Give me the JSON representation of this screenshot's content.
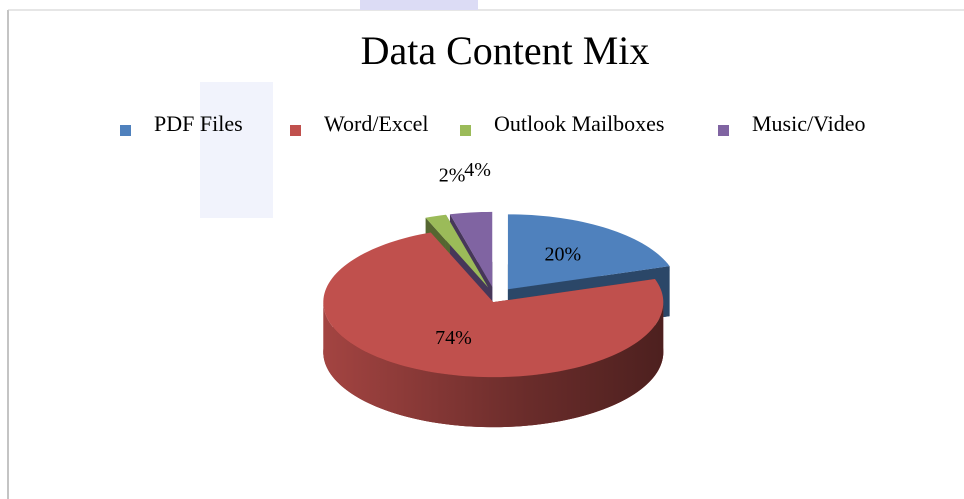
{
  "chart_data": {
    "type": "pie",
    "title": "Data Content Mix",
    "categories": [
      "PDF Files",
      "Word/Excel",
      "Outlook Mailboxes",
      "Music/Video"
    ],
    "values": [
      20,
      74,
      2,
      4
    ],
    "value_labels": [
      "20%",
      "74%",
      "2%",
      "4%"
    ],
    "colors": [
      "#4f81bd",
      "#c0504d",
      "#9bbb59",
      "#8064a2"
    ],
    "legend": "top"
  }
}
